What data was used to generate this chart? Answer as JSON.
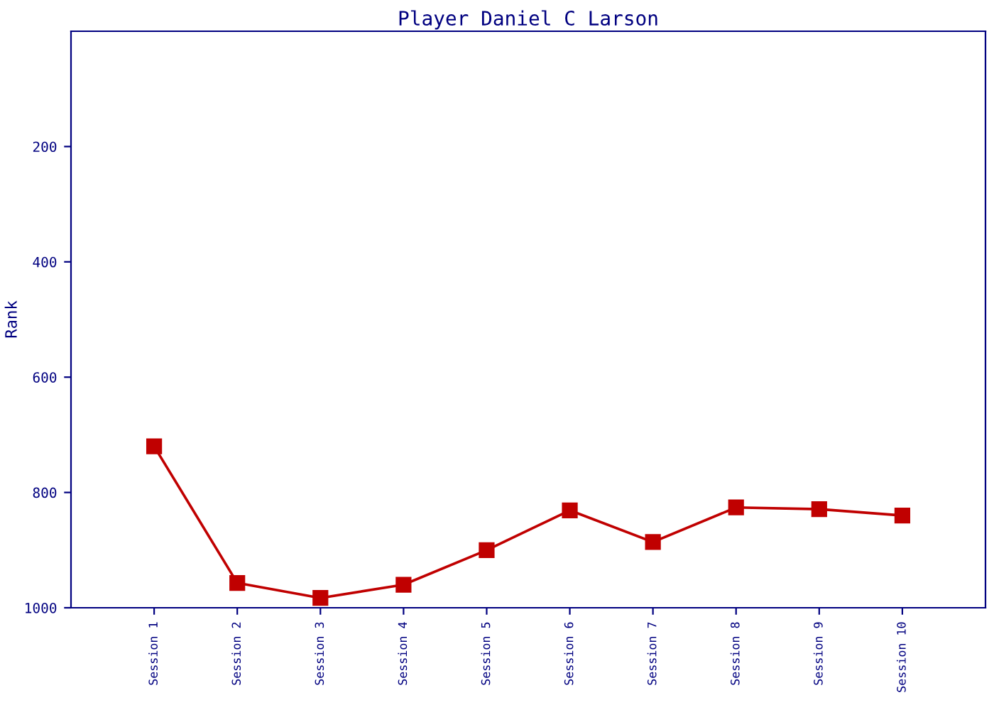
{
  "chart_data": {
    "type": "line",
    "title": "Player Daniel C Larson",
    "ylabel": "Rank",
    "categories": [
      "Session 1",
      "Session 2",
      "Session 3",
      "Session 4",
      "Session 5",
      "Session 6",
      "Session 7",
      "Session 8",
      "Session 9",
      "Session 10"
    ],
    "series": [
      {
        "color": "#c00000",
        "values": [
          720,
          957,
          983,
          960,
          900,
          831,
          886,
          826,
          829,
          840
        ]
      }
    ],
    "ylim": [
      1000,
      0
    ],
    "yticks": [
      200,
      400,
      600,
      800,
      1000
    ],
    "grid": false,
    "marker": "square",
    "line_style": "solid"
  }
}
